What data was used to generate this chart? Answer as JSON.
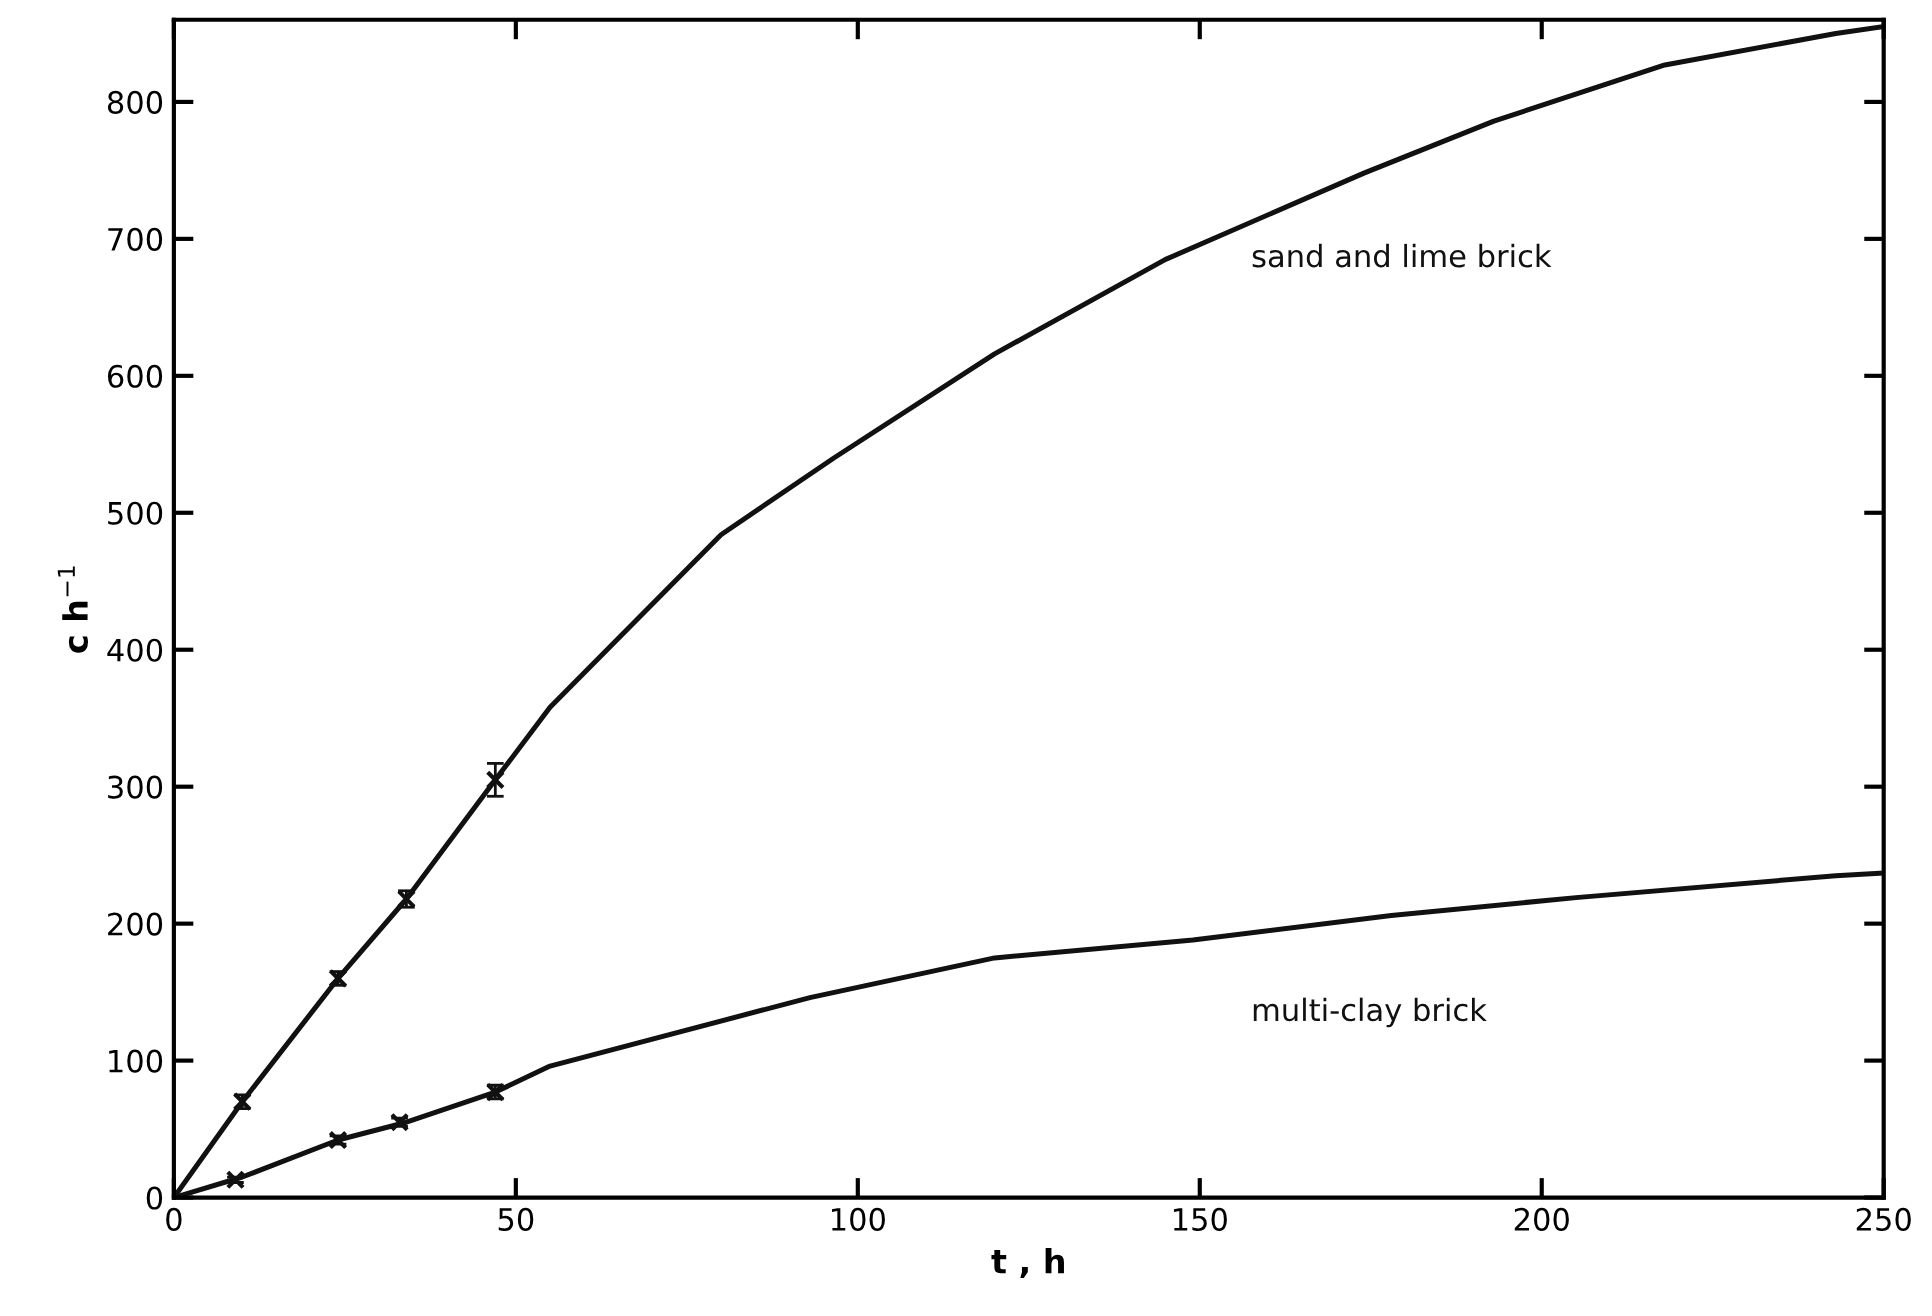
{
  "chart_data": {
    "type": "line",
    "xlabel": "t , h",
    "ylabel": "c h$^{−1}$",
    "xlim": [
      0,
      250
    ],
    "ylim": [
      0,
      860
    ],
    "xticks": [
      0,
      50,
      100,
      150,
      200,
      250
    ],
    "yticks": [
      0,
      100,
      200,
      300,
      400,
      500,
      600,
      700,
      800
    ],
    "grid": false,
    "legend": false,
    "series": [
      {
        "name": "sand and lime brick",
        "color": "#111111",
        "x": [
          0,
          10,
          24,
          34,
          47,
          55,
          80,
          96.5,
          120,
          145,
          174,
          193,
          218,
          243,
          250
        ],
        "values": [
          0,
          70,
          160,
          218,
          305,
          358,
          484,
          540,
          616,
          685,
          748,
          786,
          827,
          850,
          855
        ]
      },
      {
        "name": "multi-clay brick",
        "color": "#111111",
        "x": [
          0,
          10,
          24,
          34,
          47,
          55,
          93,
          120,
          149,
          178,
          205,
          243,
          250
        ],
        "values": [
          0,
          15,
          42,
          55,
          77,
          96,
          146,
          175,
          188,
          206,
          219,
          235,
          237
        ]
      },
      {
        "type": "scatter",
        "marker": "cross",
        "color": "#111111",
        "x": [
          10,
          24,
          34,
          47
        ],
        "values": [
          70,
          160,
          218,
          305
        ],
        "errors": [
          5,
          5,
          6,
          12
        ]
      },
      {
        "type": "scatter",
        "marker": "cross",
        "color": "#111111",
        "x": [
          9,
          24,
          33,
          47
        ],
        "values": [
          13,
          42,
          55,
          77
        ],
        "errors": [
          2,
          3,
          3,
          5
        ]
      }
    ]
  }
}
